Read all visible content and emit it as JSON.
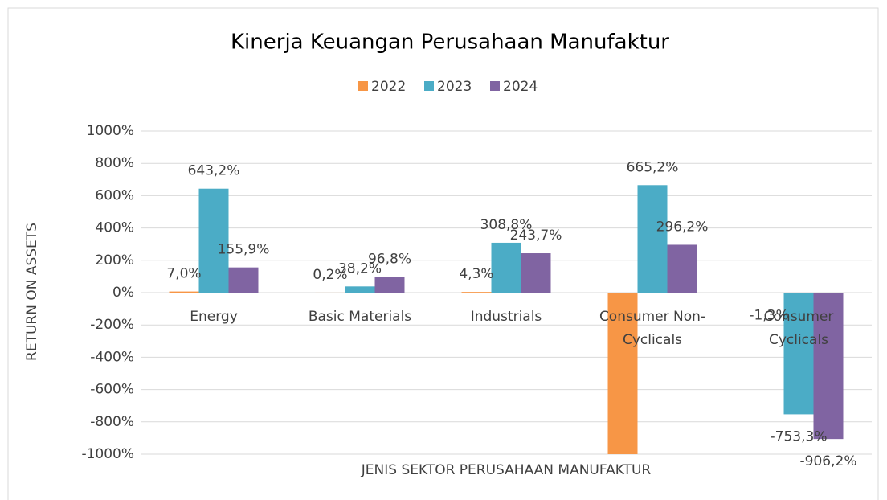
{
  "chart_data": {
    "type": "bar",
    "title": "Kinerja Keuangan Perusahaan Manufaktur",
    "x_label": "JENIS SEKTOR PERUSAHAAN MANUFAKTUR",
    "y_label": "RETURN ON ASSETS",
    "categories": [
      "Energy",
      "Basic Materials",
      "Industrials",
      "Consumer Non-Cyclicals",
      "Consumer Cyclicals"
    ],
    "series": [
      {
        "name": "2022",
        "color": "#f79646",
        "values": [
          7.0,
          0.2,
          4.3,
          -1000,
          -1.3
        ],
        "value_labels": [
          "7,0%",
          "0,2%",
          "4,3%",
          null,
          "-1,3%"
        ]
      },
      {
        "name": "2023",
        "color": "#4bacc6",
        "values": [
          643.2,
          38.2,
          308.8,
          665.2,
          -753.3
        ],
        "value_labels": [
          "643,2%",
          "38,2%",
          "308,8%",
          "665,2%",
          "-753,3%"
        ]
      },
      {
        "name": "2024",
        "color": "#8064a2",
        "values": [
          155.9,
          96.8,
          243.7,
          296.2,
          -906.2
        ],
        "value_labels": [
          "155,9%",
          "96,8%",
          "243,7%",
          "296,2%",
          "-906,2%"
        ]
      }
    ],
    "ylim": [
      -1000,
      1000
    ],
    "yticks": [
      {
        "value": -1000,
        "label": "-1000%"
      },
      {
        "value": -800,
        "label": "-800%"
      },
      {
        "value": -600,
        "label": "-600%"
      },
      {
        "value": -400,
        "label": "-400%"
      },
      {
        "value": -200,
        "label": "-200%"
      },
      {
        "value": 0,
        "label": "0%"
      },
      {
        "value": 200,
        "label": "200%"
      },
      {
        "value": 400,
        "label": "400%"
      },
      {
        "value": 600,
        "label": "600%"
      },
      {
        "value": 800,
        "label": "800%"
      },
      {
        "value": 1000,
        "label": "1000%"
      }
    ],
    "grid": true,
    "legend": "top"
  }
}
